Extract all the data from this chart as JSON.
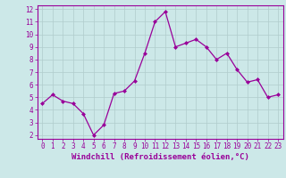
{
  "x": [
    0,
    1,
    2,
    3,
    4,
    5,
    6,
    7,
    8,
    9,
    10,
    11,
    12,
    13,
    14,
    15,
    16,
    17,
    18,
    19,
    20,
    21,
    22,
    23
  ],
  "y": [
    4.5,
    5.2,
    4.7,
    4.5,
    3.7,
    2.0,
    2.8,
    5.3,
    5.5,
    6.3,
    8.5,
    11.0,
    11.8,
    9.0,
    9.3,
    9.6,
    9.0,
    8.0,
    8.5,
    7.2,
    6.2,
    6.4,
    5.0,
    5.2
  ],
  "line_color": "#990099",
  "marker": "D",
  "marker_size": 2,
  "bg_color": "#cce8e8",
  "grid_color": "#b0cccc",
  "xlabel": "Windchill (Refroidissement éolien,°C)",
  "xlabel_color": "#990099",
  "tick_color": "#990099",
  "xlim": [
    -0.5,
    23.5
  ],
  "ylim": [
    1.7,
    12.3
  ],
  "yticks": [
    2,
    3,
    4,
    5,
    6,
    7,
    8,
    9,
    10,
    11,
    12
  ],
  "xticks": [
    0,
    1,
    2,
    3,
    4,
    5,
    6,
    7,
    8,
    9,
    10,
    11,
    12,
    13,
    14,
    15,
    16,
    17,
    18,
    19,
    20,
    21,
    22,
    23
  ],
  "spine_color": "#990099",
  "xlabel_fontsize": 6.5,
  "tick_fontsize": 5.5
}
